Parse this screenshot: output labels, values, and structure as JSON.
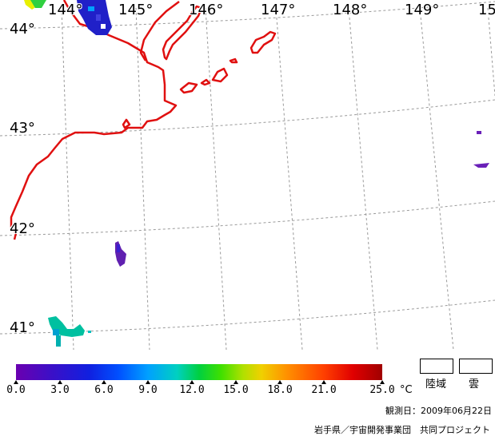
{
  "map": {
    "longitude_labels": [
      "144°",
      "145°",
      "146°",
      "147°",
      "148°",
      "149°",
      "15"
    ],
    "latitude_labels": [
      "44°",
      "43°",
      "42°",
      "41°"
    ],
    "coastline_color": "#e01010",
    "grid_color": "#9a9a9a"
  },
  "colorbar": {
    "ticks": [
      "0.0",
      "3.0",
      "6.0",
      "9.0",
      "12.0",
      "15.0",
      "18.0",
      "21.0",
      "25.0"
    ],
    "unit": "°C"
  },
  "legend": {
    "land": "陸域",
    "cloud": "雲"
  },
  "footer": {
    "observation_date": "観測日：2009年06月22日",
    "credit": "岩手県／宇宙開発事業団　共同プロジェクト"
  }
}
